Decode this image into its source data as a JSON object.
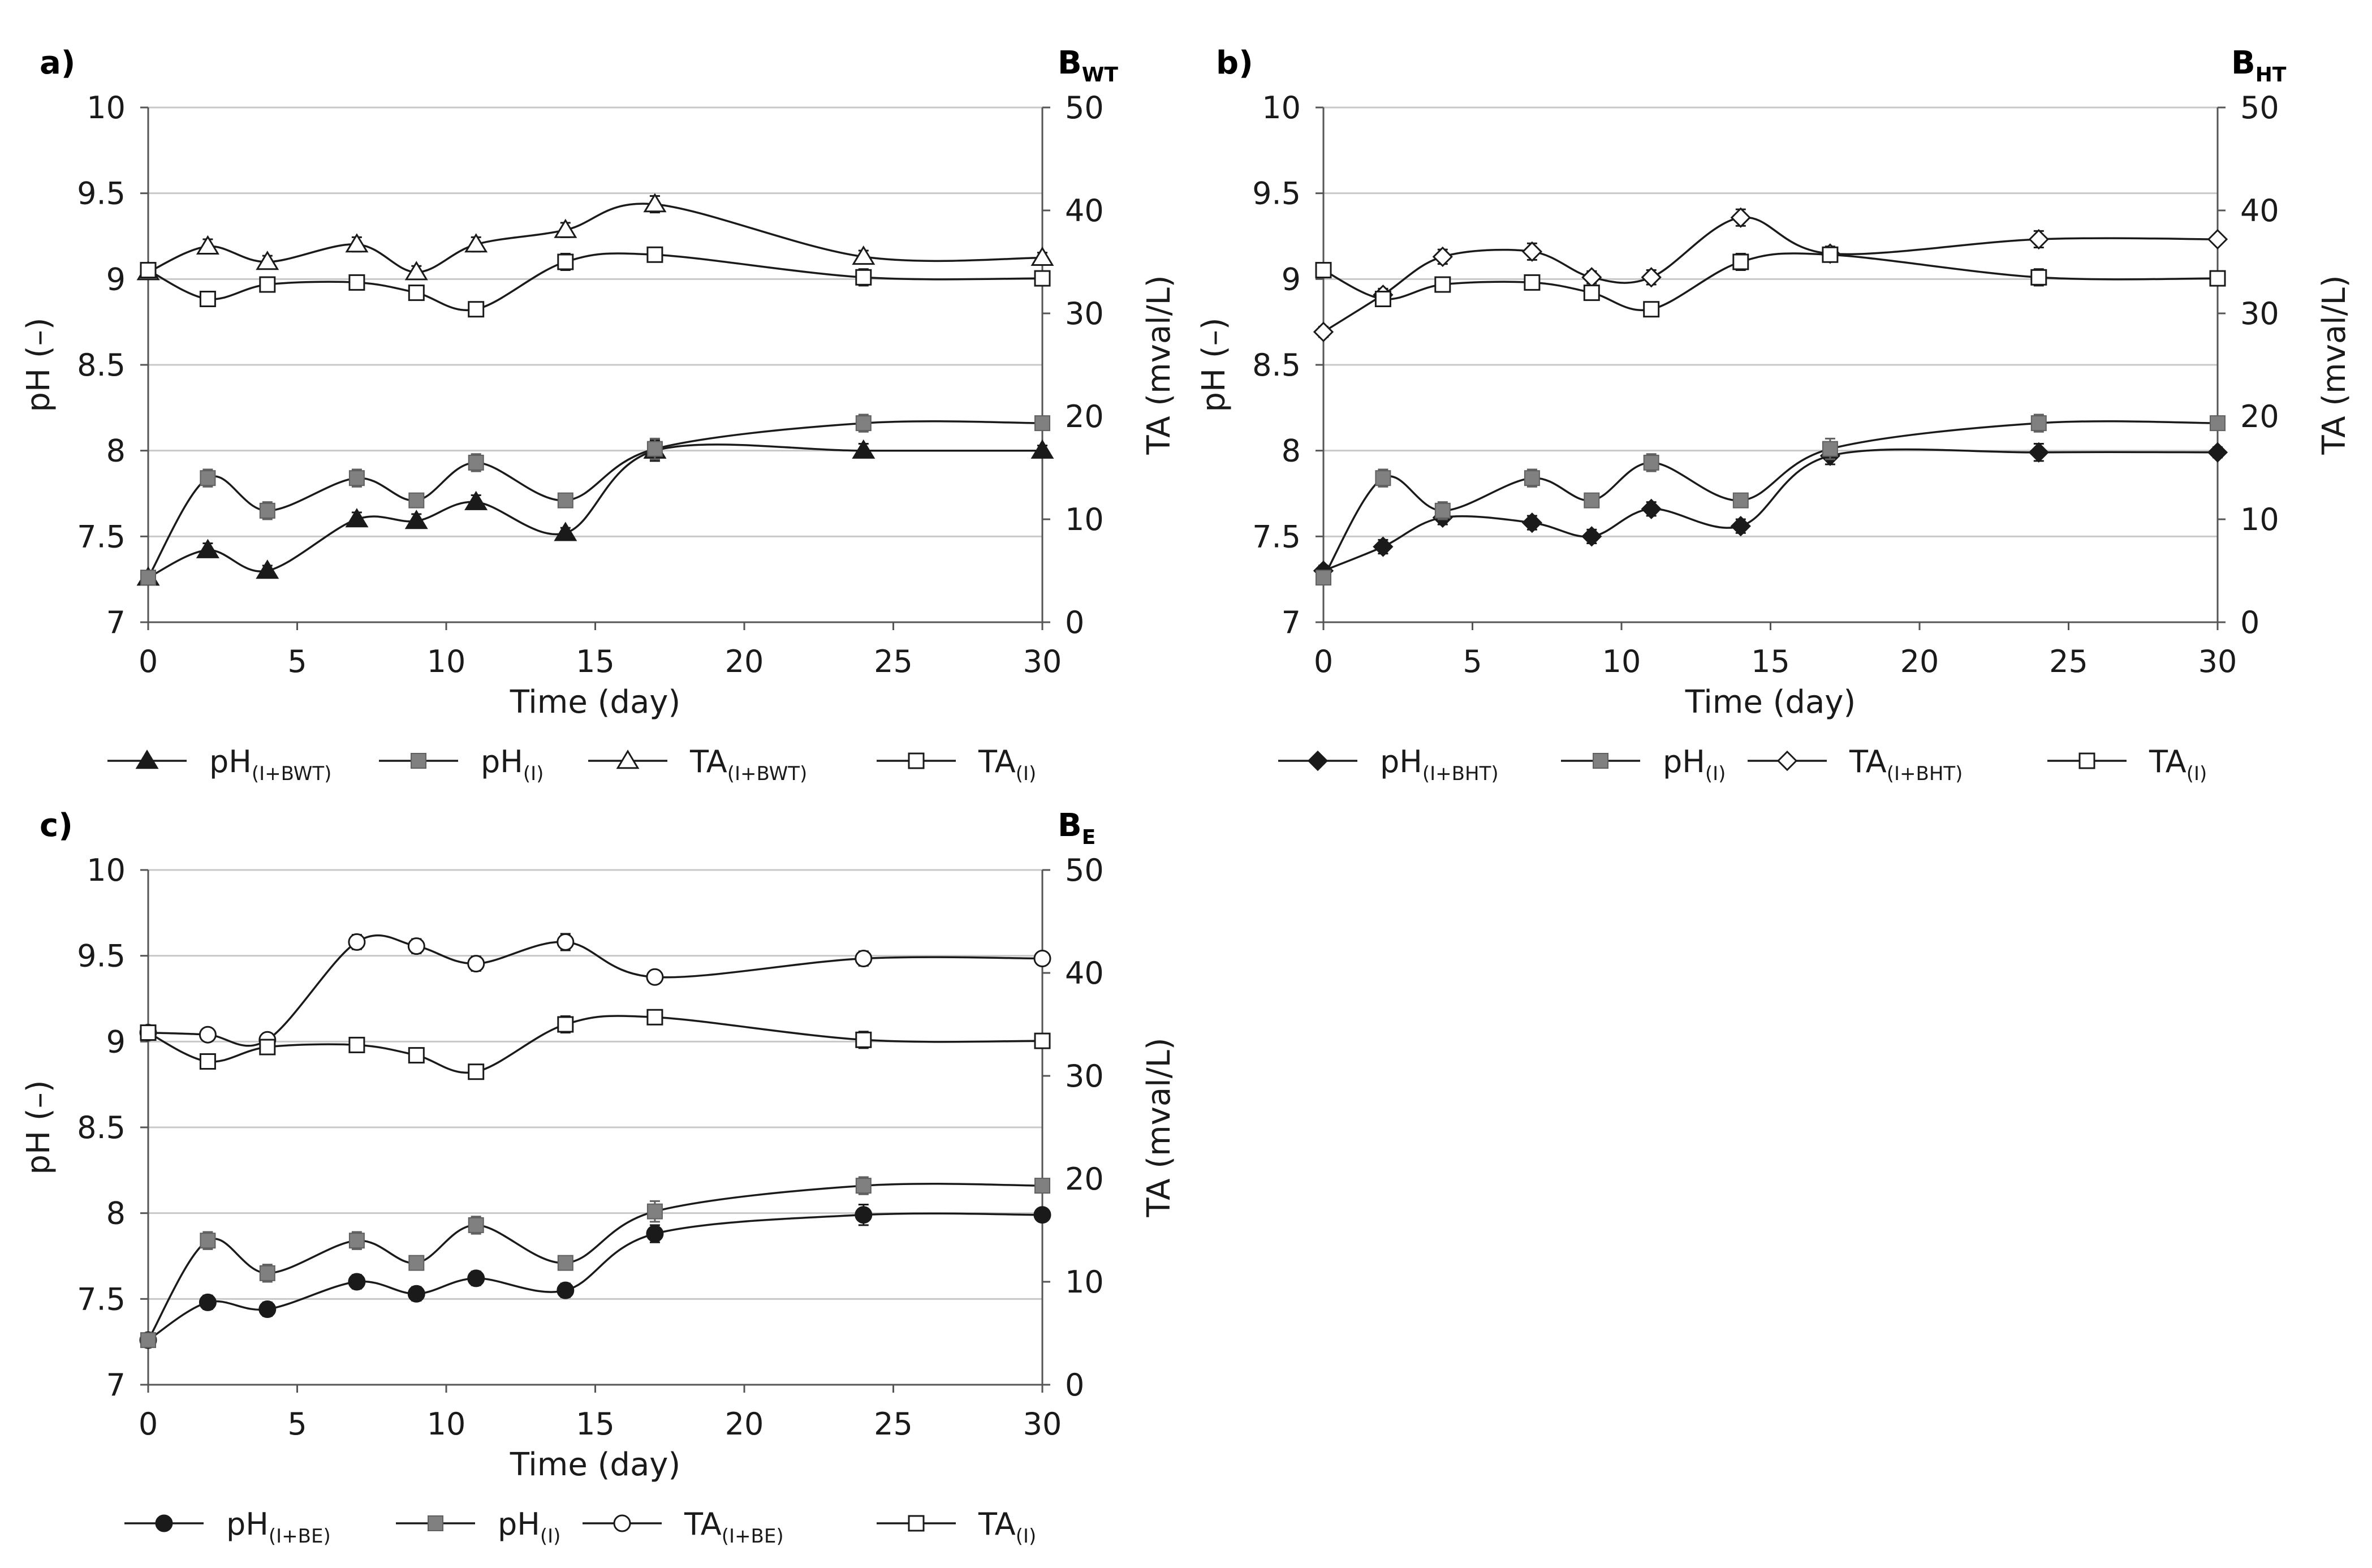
{
  "colors": {
    "grid": "#c8c8c8",
    "axis": "#555555",
    "line": "#1a1a1a",
    "gray_marker": "#808080",
    "gray_marker_edge": "#606060"
  },
  "chart_data": [
    {
      "type": "line",
      "panel_label": "a)",
      "corner_label": {
        "main": "B",
        "sub": "WT"
      },
      "x": [
        0,
        2,
        4,
        7,
        9,
        11,
        14,
        17,
        24,
        30
      ],
      "xlabel": "Time (day)",
      "ylabel": "pH (–)",
      "y2label": "TA (mval/L)",
      "xlim": [
        0,
        30
      ],
      "xticks": [
        0,
        5,
        10,
        15,
        20,
        25,
        30
      ],
      "ylim": [
        7,
        10
      ],
      "yticks": [
        7,
        7.5,
        8,
        8.5,
        9,
        9.5,
        10
      ],
      "y2lim": [
        0,
        50
      ],
      "y2ticks": [
        0,
        10,
        20,
        30,
        40,
        50
      ],
      "series": [
        {
          "name": "pH",
          "sub": "(I+BWT)",
          "axis": "left",
          "marker": "triangle-filled",
          "values": [
            7.26,
            7.42,
            7.3,
            7.6,
            7.59,
            7.7,
            7.52,
            8.0,
            8.0,
            8.0
          ],
          "errors": [
            0.03,
            0.04,
            0.03,
            0.04,
            0.04,
            0.04,
            0.03,
            0.06,
            0.04,
            0.03
          ]
        },
        {
          "name": "pH",
          "sub": "(I)",
          "axis": "left",
          "marker": "square-gray",
          "values": [
            7.26,
            7.84,
            7.65,
            7.84,
            7.71,
            7.93,
            7.71,
            8.01,
            8.16,
            8.16
          ],
          "errors": [
            0.02,
            0.05,
            0.05,
            0.05,
            0.04,
            0.05,
            0.04,
            0.06,
            0.05,
            0.03
          ]
        },
        {
          "name": "TA",
          "sub": "(I+BWT)",
          "axis": "right",
          "marker": "triangle-open",
          "values": [
            34.0,
            36.5,
            35.0,
            36.7,
            34.0,
            36.7,
            38.1,
            40.6,
            35.5,
            35.4
          ],
          "errors": [
            0.6,
            0.7,
            0.6,
            0.7,
            0.6,
            0.7,
            0.7,
            0.8,
            0.6,
            0.5
          ]
        },
        {
          "name": "TA",
          "sub": "(I)",
          "axis": "right",
          "marker": "square-open",
          "values": [
            34.2,
            31.4,
            32.8,
            33.0,
            32.0,
            30.4,
            35.0,
            35.7,
            33.5,
            33.4
          ],
          "errors": [
            0.6,
            0.7,
            0.6,
            0.6,
            0.7,
            0.6,
            0.8,
            0.7,
            0.8,
            0.5
          ]
        }
      ]
    },
    {
      "type": "line",
      "panel_label": "b)",
      "corner_label": {
        "main": "B",
        "sub": "HT"
      },
      "x": [
        0,
        2,
        4,
        7,
        9,
        11,
        14,
        17,
        24,
        30
      ],
      "xlabel": "Time (day)",
      "ylabel": "pH (–)",
      "y2label": "TA (mval/L)",
      "xlim": [
        0,
        30
      ],
      "xticks": [
        0,
        5,
        10,
        15,
        20,
        25,
        30
      ],
      "ylim": [
        7,
        10
      ],
      "yticks": [
        7,
        7.5,
        8,
        8.5,
        9,
        9.5,
        10
      ],
      "y2lim": [
        0,
        50
      ],
      "y2ticks": [
        0,
        10,
        20,
        30,
        40,
        50
      ],
      "series": [
        {
          "name": "pH",
          "sub": "(I+BHT)",
          "axis": "left",
          "marker": "diamond-filled",
          "values": [
            7.3,
            7.44,
            7.61,
            7.58,
            7.5,
            7.66,
            7.56,
            7.97,
            7.99,
            7.99
          ],
          "errors": [
            0.03,
            0.04,
            0.04,
            0.04,
            0.04,
            0.04,
            0.04,
            0.05,
            0.05,
            0.03
          ]
        },
        {
          "name": "pH",
          "sub": "(I)",
          "axis": "left",
          "marker": "square-gray",
          "values": [
            7.26,
            7.84,
            7.65,
            7.84,
            7.71,
            7.93,
            7.71,
            8.01,
            8.16,
            8.16
          ],
          "errors": [
            0.02,
            0.05,
            0.05,
            0.05,
            0.04,
            0.05,
            0.04,
            0.06,
            0.05,
            0.03
          ]
        },
        {
          "name": "TA",
          "sub": "(I+BHT)",
          "axis": "right",
          "marker": "diamond-open",
          "values": [
            28.2,
            31.8,
            35.5,
            36.0,
            33.5,
            33.5,
            39.3,
            35.8,
            37.2,
            37.2
          ],
          "errors": [
            0.5,
            0.6,
            0.7,
            0.8,
            0.6,
            0.7,
            0.8,
            0.7,
            0.8,
            0.4
          ]
        },
        {
          "name": "TA",
          "sub": "(I)",
          "axis": "right",
          "marker": "square-open",
          "values": [
            34.2,
            31.4,
            32.8,
            33.0,
            32.0,
            30.4,
            35.0,
            35.7,
            33.5,
            33.4
          ],
          "errors": [
            0.6,
            0.7,
            0.6,
            0.6,
            0.7,
            0.6,
            0.8,
            0.7,
            0.8,
            0.5
          ]
        }
      ]
    },
    {
      "type": "line",
      "panel_label": "c)",
      "corner_label": {
        "main": "B",
        "sub": "E"
      },
      "x": [
        0,
        2,
        4,
        7,
        9,
        11,
        14,
        17,
        24,
        30
      ],
      "xlabel": "Time (day)",
      "ylabel": "pH (–)",
      "y2label": "TA (mval/L)",
      "xlim": [
        0,
        30
      ],
      "xticks": [
        0,
        5,
        10,
        15,
        20,
        25,
        30
      ],
      "ylim": [
        7,
        10
      ],
      "yticks": [
        7,
        7.5,
        8,
        8.5,
        9,
        9.5,
        10
      ],
      "y2lim": [
        0,
        50
      ],
      "y2ticks": [
        0,
        10,
        20,
        30,
        40,
        50
      ],
      "series": [
        {
          "name": "pH",
          "sub": "(I+BE)",
          "axis": "left",
          "marker": "circle-filled",
          "values": [
            7.26,
            7.48,
            7.44,
            7.6,
            7.53,
            7.62,
            7.55,
            7.88,
            7.99,
            7.99
          ],
          "errors": [
            0.03,
            0.04,
            0.04,
            0.04,
            0.04,
            0.04,
            0.04,
            0.05,
            0.06,
            0.03
          ]
        },
        {
          "name": "pH",
          "sub": "(I)",
          "axis": "left",
          "marker": "square-gray",
          "values": [
            7.26,
            7.84,
            7.65,
            7.84,
            7.71,
            7.93,
            7.71,
            8.01,
            8.16,
            8.16
          ],
          "errors": [
            0.02,
            0.05,
            0.05,
            0.05,
            0.04,
            0.05,
            0.04,
            0.06,
            0.05,
            0.03
          ]
        },
        {
          "name": "TA",
          "sub": "(I+BE)",
          "axis": "right",
          "marker": "circle-open",
          "values": [
            34.2,
            34.0,
            33.5,
            43.0,
            42.6,
            40.9,
            43.0,
            39.6,
            41.4,
            41.4
          ],
          "errors": [
            0.5,
            0.6,
            0.6,
            0.7,
            0.7,
            0.7,
            0.8,
            0.6,
            0.7,
            0.5
          ]
        },
        {
          "name": "TA",
          "sub": "(I)",
          "axis": "right",
          "marker": "square-open",
          "values": [
            34.2,
            31.4,
            32.8,
            33.0,
            32.0,
            30.4,
            35.0,
            35.7,
            33.5,
            33.4
          ],
          "errors": [
            0.6,
            0.7,
            0.6,
            0.6,
            0.7,
            0.6,
            0.8,
            0.7,
            0.8,
            0.5
          ]
        }
      ]
    }
  ]
}
